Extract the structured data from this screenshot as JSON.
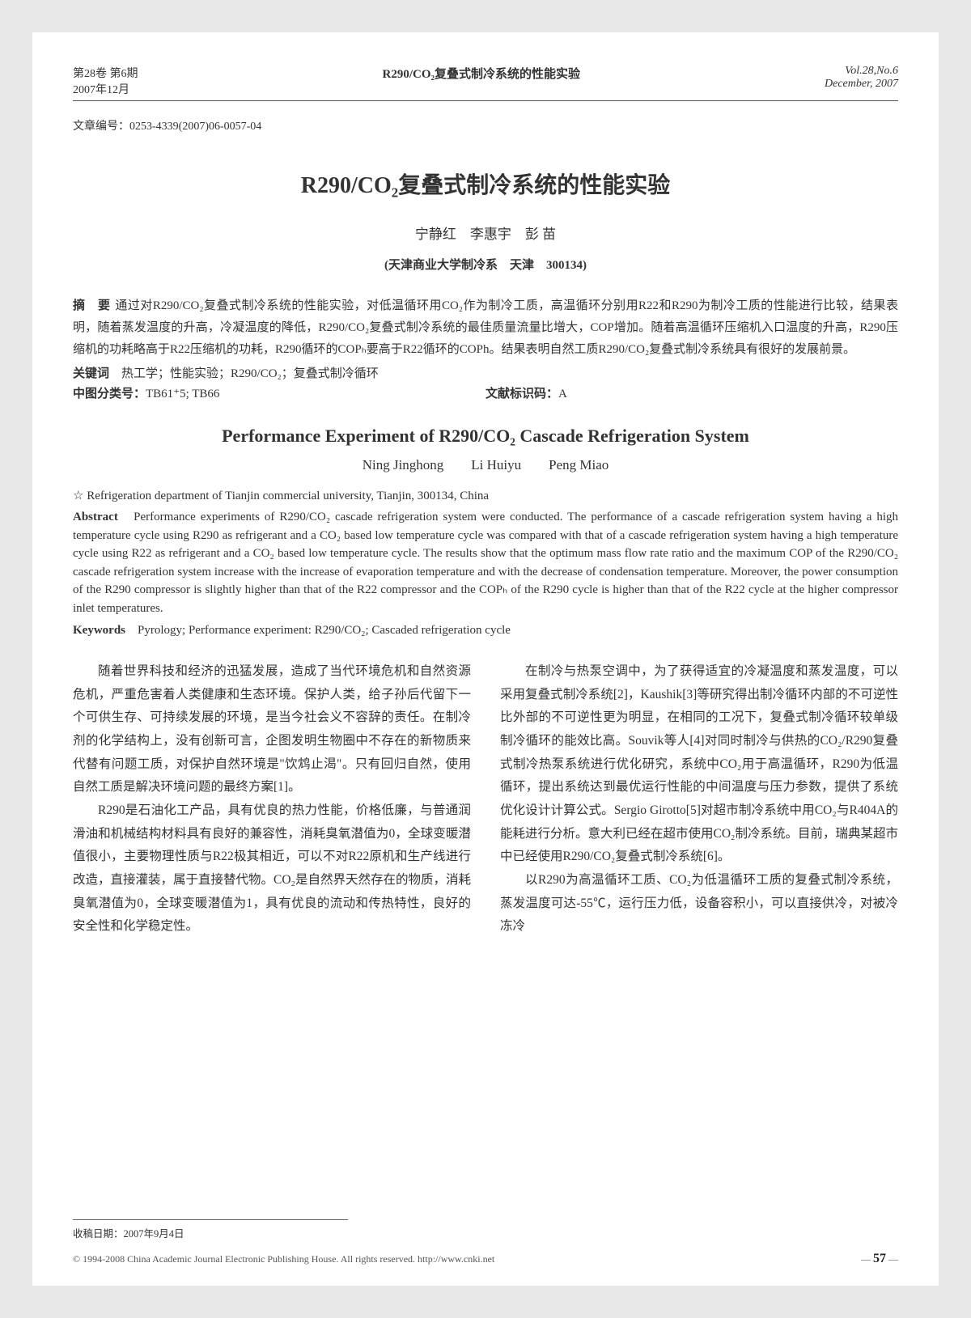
{
  "header": {
    "volume_issue": "第28卷 第6期",
    "date_cn": "2007年12月",
    "running_title": "R290/CO₂复叠式制冷系统的性能实验",
    "vol_en": "Vol.28,No.6",
    "date_en": "December, 2007"
  },
  "article_id": "文章编号：0253-4339(2007)06-0057-04",
  "title_cn": "R290/CO₂复叠式制冷系统的性能实验",
  "authors_cn": "宁静红　李惠宇　彭 苗",
  "affiliation_cn": "(天津商业大学制冷系　天津　300134)",
  "abstract_label_cn": "摘　要",
  "abstract_cn": "通过对R290/CO₂复叠式制冷系统的性能实验，对低温循环用CO₂作为制冷工质，高温循环分别用R22和R290为制冷工质的性能进行比较，结果表明，随着蒸发温度的升高，冷凝温度的降低，R290/CO₂复叠式制冷系统的最佳质量流量比增大，COP增加。随着高温循环压缩机入口温度的升高，R290压缩机的功耗略高于R22压缩机的功耗，R290循环的COPₕ要高于R22循环的COPh。结果表明自然工质R290/CO₂复叠式制冷系统具有很好的发展前景。",
  "keywords_label_cn": "关键词",
  "keywords_cn": "热工学；性能实验；R290/CO₂；复叠式制冷循环",
  "class_label": "中图分类号：",
  "class_codes": "TB61⁺5; TB66",
  "doc_code_label": "文献标识码：",
  "doc_code": "A",
  "title_en": "Performance Experiment of R290/CO₂ Cascade Refrigeration System",
  "authors_en": "Ning Jinghong　　Li Huiyu　　Peng Miao",
  "affiliation_en": "☆ Refrigeration department of Tianjin commercial university, Tianjin, 300134, China",
  "abstract_label_en": "Abstract",
  "abstract_en": "Performance experiments of R290/CO₂ cascade refrigeration system were conducted. The performance of a cascade refrigeration system having a high temperature cycle using R290 as refrigerant and a CO₂ based low temperature cycle was compared with that of a cascade refrigeration system having a high temperature cycle using R22 as refrigerant and a CO₂ based low temperature cycle. The results show that the optimum mass flow rate ratio and the maximum COP of the R290/CO₂ cascade refrigeration system increase with the increase of evaporation temperature and with the decrease of condensation temperature. Moreover, the power consumption of the R290 compressor is slightly higher than that of the R22 compressor and the COPₕ of the R290 cycle is higher than that of the R22 cycle at the higher compressor inlet temperatures.",
  "keywords_label_en": "Keywords",
  "keywords_en": "Pyrology; Performance experiment: R290/CO₂; Cascaded refrigeration cycle",
  "body": {
    "p1": "随着世界科技和经济的迅猛发展，造成了当代环境危机和自然资源危机，严重危害着人类健康和生态环境。保护人类，给子孙后代留下一个可供生存、可持续发展的环境，是当今社会义不容辞的责任。在制冷剂的化学结构上，没有创新可言，企图发明生物圈中不存在的新物质来代替有问题工质，对保护自然环境是\"饮鸩止渴\"。只有回归自然，使用自然工质是解决环境问题的最终方案[1]。",
    "p2": "R290是石油化工产品，具有优良的热力性能，价格低廉，与普通润滑油和机械结构材料具有良好的兼容性，消耗臭氧潜值为0，全球变暖潜值很小，主要物理性质与R22极其相近，可以不对R22原机和生产线进行改造，直接灌装，属于直接替代物。CO₂是自然界天然存在的物质，消耗臭氧潜值为0，全球变暖潜值为1，具有优良的流动和传热特性，良好的安全性和化学稳定性。",
    "p3": "在制冷与热泵空调中，为了获得适宜的冷凝温度和蒸发温度，可以采用复叠式制冷系统[2]，Kaushik[3]等研究得出制冷循环内部的不可逆性比外部的不可逆性更为明显，在相同的工况下，复叠式制冷循环较单级制冷循环的能效比高。Souvik等人[4]对同时制冷与供热的CO₂/R290复叠式制冷热泵系统进行优化研究，系统中CO₂用于高温循环，R290为低温循环，提出系统达到最优运行性能的中间温度与压力参数，提供了系统优化设计计算公式。Sergio Girotto[5]对超市制冷系统中用CO₂与R404A的能耗进行分析。意大利已经在超市使用CO₂制冷系统。目前，瑞典某超市中已经使用R290/CO₂复叠式制冷系统[6]。",
    "p4": "以R290为高温循环工质、CO₂为低温循环工质的复叠式制冷系统，蒸发温度可达-55℃，运行压力低，设备容积小，可以直接供冷，对被冷冻冷"
  },
  "received_date": "收稿日期：2007年9月4日",
  "copyright": "© 1994-2008 China Academic Journal Electronic Publishing House. All rights reserved.    http://www.cnki.net",
  "page_number_prefix": "—",
  "page_number": "57",
  "page_number_suffix": "—"
}
